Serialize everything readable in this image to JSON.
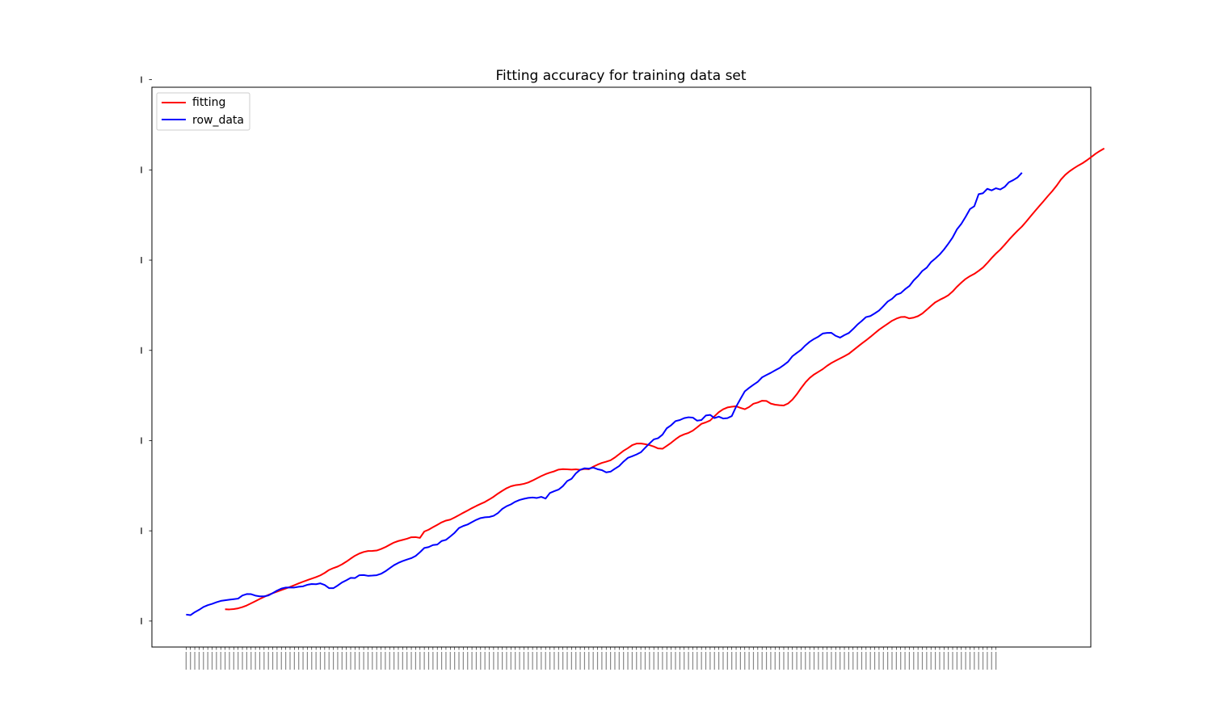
{
  "chart_data": {
    "type": "line",
    "title": "Fitting accuracy for training data set",
    "xlabel": "",
    "ylabel": "",
    "legend_position": "top-left",
    "grid": false,
    "xlim": [
      -7.9,
      208.9
    ],
    "ylim": [
      -143.9,
      2958.1
    ],
    "x_ticks_unlabeled_count": 188,
    "y_ticks_unlabeled": [
      0,
      500,
      1000,
      1500,
      2000,
      2500,
      3000
    ],
    "series": [
      {
        "name": "fitting",
        "color": "#ff0000",
        "start_x": 9,
        "values": [
          65.1,
          64.5,
          66.3,
          70.5,
          77.3,
          86.6,
          98.2,
          110.3,
          122.4,
          133.8,
          145.0,
          154.5,
          163.0,
          171.8,
          180.3,
          189.2,
          198.7,
          208.7,
          218.1,
          227.0,
          235.2,
          243.4,
          253.4,
          266.8,
          283.1,
          293.6,
          302.0,
          314.5,
          329.4,
          346.2,
          362.1,
          374.2,
          383.0,
          388.3,
          388.8,
          390.9,
          399.2,
          409.6,
          422.6,
          435.0,
          443.6,
          449.7,
          456.2,
          464.4,
          465.1,
          461.1,
          496.2,
          506.3,
          520.0,
          533.2,
          546.9,
          556.7,
          562.3,
          573.8,
          586.6,
          600.0,
          612.6,
          625.8,
          637.9,
          649.3,
          660.0,
          673.9,
          688.8,
          706.1,
          721.6,
          736.1,
          746.8,
          752.8,
          755.8,
          760.5,
          767.9,
          778.9,
          791.0,
          803.4,
          814.1,
          822.8,
          829.7,
          839.4,
          842.0,
          840.7,
          839.4,
          840.7,
          838.2,
          843.0,
          841.6,
          855.3,
          866.7,
          876.3,
          883.0,
          890.8,
          906.4,
          924.8,
          943.5,
          958.1,
          974.6,
          983.3,
          983.9,
          980.3,
          974.9,
          966.9,
          956.5,
          954.9,
          970.9,
          988.0,
          1007.1,
          1024.2,
          1034.6,
          1042.8,
          1055.1,
          1073.6,
          1093.0,
          1101.0,
          1111.4,
          1134.9,
          1157.6,
          1173.5,
          1183.7,
          1187.8,
          1190.4,
          1181.2,
          1173.9,
          1186.1,
          1204.3,
          1210.9,
          1221.0,
          1219.5,
          1205.1,
          1199.1,
          1196.0,
          1194.7,
          1205.6,
          1227.0,
          1256.4,
          1290.7,
          1322.2,
          1347.6,
          1366.4,
          1381.2,
          1395.9,
          1414.3,
          1430.0,
          1442.7,
          1455.1,
          1467.4,
          1480.7,
          1499.7,
          1518.8,
          1537.7,
          1555.5,
          1574.6,
          1594.7,
          1614.5,
          1631.3,
          1647.5,
          1664.0,
          1675.8,
          1684.4,
          1685.7,
          1677.3,
          1681.3,
          1689.7,
          1704.1,
          1724.7,
          1746.0,
          1766.6,
          1779.9,
          1791.7,
          1805.6,
          1826.7,
          1852.6,
          1875.3,
          1896.0,
          1911.4,
          1923.9,
          1940.6,
          1959.1,
          1984.1,
          2011.7,
          2036.6,
          2058.6,
          2084.9,
          2112.8,
          2138.5,
          2163.2,
          2186.2,
          2213.8,
          2243.0,
          2271.7,
          2299.6,
          2327.0,
          2355.5,
          2382.3,
          2412.5,
          2446.5,
          2472.8,
          2492.6,
          2509.2,
          2524.1,
          2537.4,
          2553.6,
          2571.4,
          2589.6,
          2605.2,
          2619.0
        ]
      },
      {
        "name": "row_data",
        "color": "#0000ff",
        "start_x": 0,
        "values": [
          36.0,
          32.8,
          49.2,
          62.3,
          78.0,
          88.1,
          95.3,
          104.1,
          111.7,
          115.3,
          118.7,
          121.3,
          124.4,
          141.9,
          149.7,
          149.0,
          141.0,
          137.2,
          137.1,
          142.0,
          154.8,
          169.0,
          180.0,
          185.5,
          186.4,
          185.9,
          190.1,
          192.5,
          201.1,
          205.4,
          204.3,
          209.1,
          199.9,
          182.4,
          182.1,
          196.9,
          213.9,
          226.1,
          239.2,
          238.4,
          254.1,
          255.1,
          250.8,
          252.1,
          254.1,
          261.9,
          275.7,
          292.9,
          309.6,
          322.4,
          332.3,
          341.1,
          348.5,
          360.9,
          381.5,
          405.1,
          410.1,
          421.2,
          424.1,
          443.5,
          450.2,
          468.8,
          489.1,
          515.5,
          527.0,
          535.1,
          548.1,
          560.9,
          570.8,
          575.1,
          576.9,
          583.1,
          598.2,
          621.5,
          636.3,
          646.7,
          661.2,
          671.1,
          677.5,
          682.5,
          684.7,
          682.2,
          688.2,
          678.7,
          709.6,
          719.6,
          728.4,
          747.7,
          776.0,
          788.4,
          818.5,
          838.4,
          846.6,
          844.7,
          850.4,
          841.6,
          836.4,
          824.0,
          827.8,
          844.0,
          859.0,
          883.6,
          904.3,
          913.1,
          923.1,
          935.3,
          960.2,
          984.3,
          1006.8,
          1013.5,
          1033.1,
          1068.6,
          1085.3,
          1107.9,
          1113.9,
          1124.6,
          1129.3,
          1127.6,
          1110.5,
          1114.0,
          1138.9,
          1142.6,
          1124.7,
          1132.7,
          1122.4,
          1124.5,
          1136.1,
          1188.0,
          1230.7,
          1272.9,
          1292.0,
          1309.4,
          1325.8,
          1350.6,
          1363.4,
          1375.5,
          1389.2,
          1401.9,
          1418.5,
          1437.1,
          1467.5,
          1485.9,
          1503.2,
          1527.5,
          1547.8,
          1563.4,
          1576.2,
          1593.4,
          1596.8,
          1597.2,
          1580.5,
          1570.7,
          1584.5,
          1595.8,
          1617.9,
          1642.6,
          1662.9,
          1684.4,
          1690.1,
          1704.7,
          1720.6,
          1744.7,
          1770.5,
          1785.6,
          1808.3,
          1817.0,
          1838.7,
          1856.5,
          1887.8,
          1911.3,
          1940.2,
          1957.9,
          1988.9,
          2009.3,
          2031.3,
          2058.9,
          2091.1,
          2126.0,
          2170.8,
          2200.9,
          2240.1,
          2282.9,
          2298.7,
          2365.4,
          2370.7,
          2395.2,
          2386.6,
          2398.4,
          2391.6,
          2405.8,
          2431.7,
          2443.6,
          2458.6,
          2484.6
        ]
      }
    ]
  }
}
